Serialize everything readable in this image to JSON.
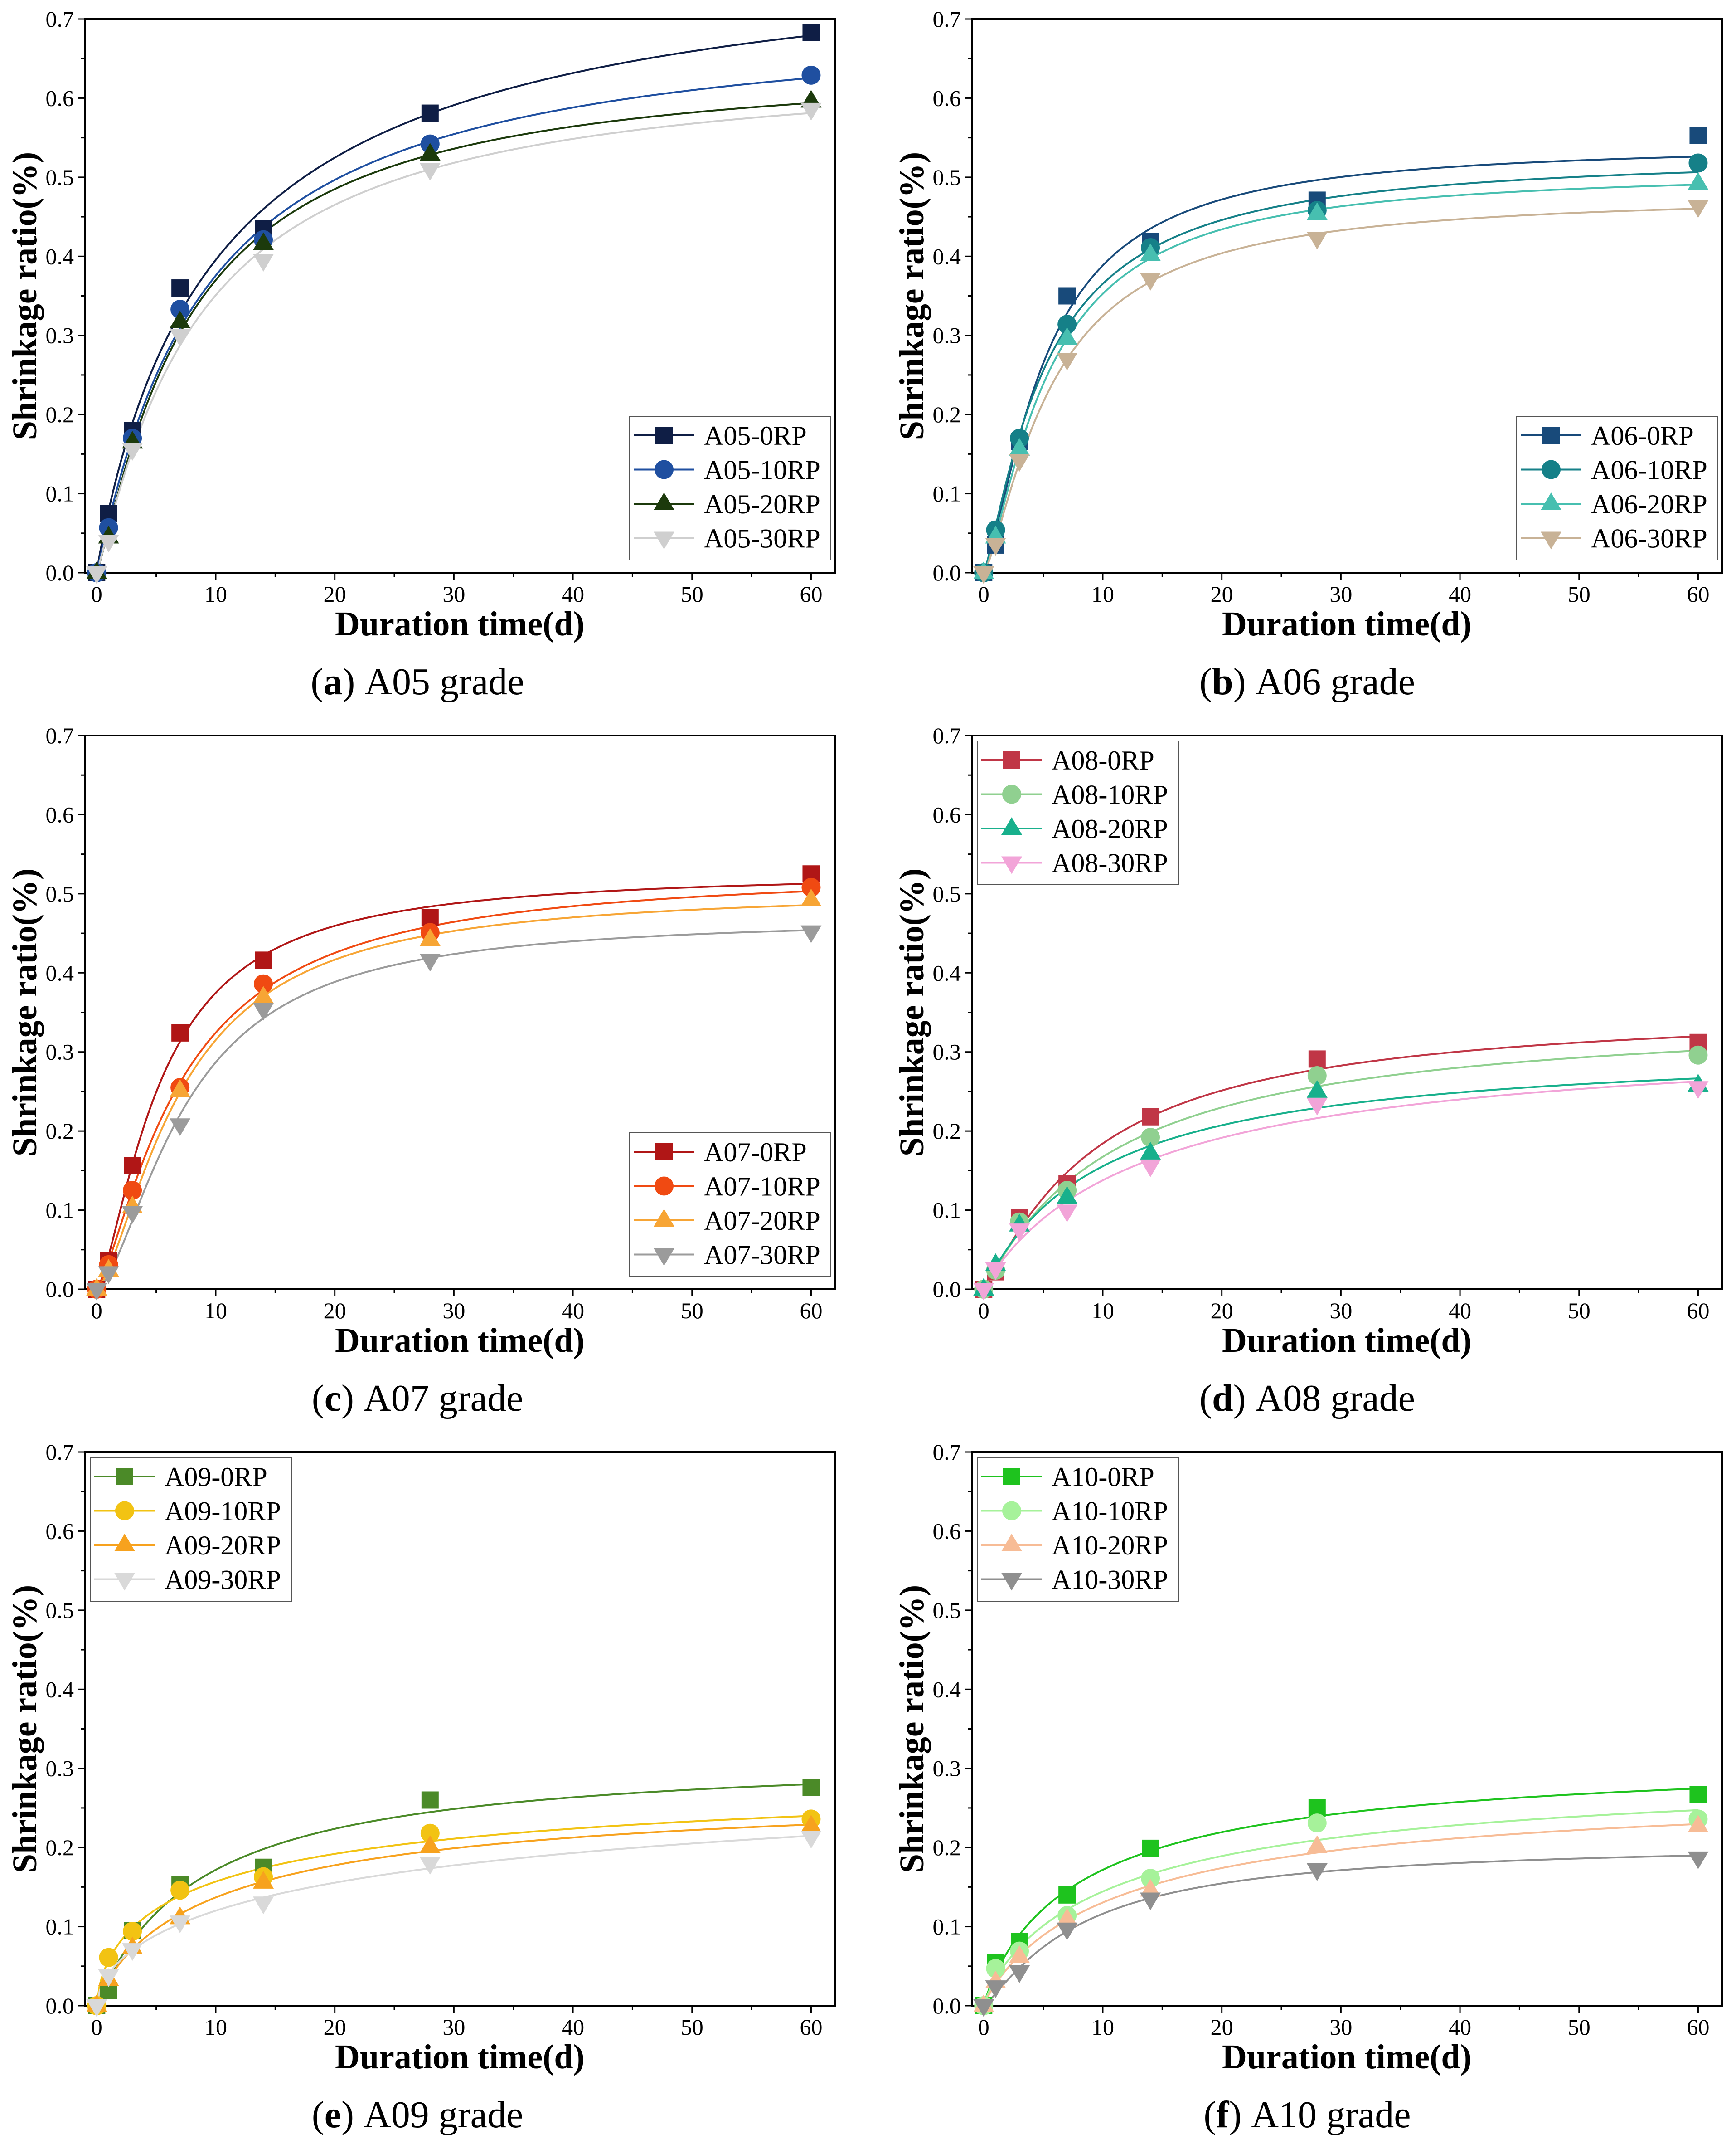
{
  "chart_data": [
    {
      "type": "line",
      "caption": {
        "open": "(",
        "label": "a",
        "close": ")",
        "text": "A05 grade"
      },
      "xlabel": "Duration time(d)",
      "ylabel": "Shrinkage ratio(%)",
      "xlim": [
        -1,
        62
      ],
      "ylim": [
        0,
        0.7
      ],
      "xticks": [
        0,
        10,
        20,
        30,
        40,
        50,
        60
      ],
      "yticks": [
        "0.0",
        "0.1",
        "0.2",
        "0.3",
        "0.4",
        "0.5",
        "0.6",
        "0.7"
      ],
      "legend": "bottom-right",
      "x": [
        0,
        1,
        3,
        7,
        14,
        28,
        60
      ],
      "series": [
        {
          "name": "A05-0RP",
          "marker": "square",
          "color": "#0f1e45",
          "values": [
            0,
            0.075,
            0.18,
            0.36,
            0.435,
            0.581,
            0.683
          ]
        },
        {
          "name": "A05-10RP",
          "marker": "circle",
          "color": "#1f4fa0",
          "values": [
            0,
            0.057,
            0.17,
            0.333,
            0.421,
            0.542,
            0.629
          ]
        },
        {
          "name": "A05-20RP",
          "marker": "triangle-up",
          "color": "#1c3a0c",
          "values": [
            0,
            0.045,
            0.165,
            0.317,
            0.416,
            0.529,
            0.596
          ]
        },
        {
          "name": "A05-30RP",
          "marker": "triangle-down",
          "color": "#cfcfcf",
          "values": [
            0,
            0.04,
            0.156,
            0.3,
            0.395,
            0.51,
            0.586
          ]
        }
      ]
    },
    {
      "type": "line",
      "caption": {
        "open": "(",
        "label": "b",
        "close": ")",
        "text": "A06 grade"
      },
      "xlabel": "Duration time(d)",
      "ylabel": "Shrinkage ratio(%)",
      "xlim": [
        -1,
        62
      ],
      "ylim": [
        0,
        0.7
      ],
      "xticks": [
        0,
        10,
        20,
        30,
        40,
        50,
        60
      ],
      "yticks": [
        "0.0",
        "0.1",
        "0.2",
        "0.3",
        "0.4",
        "0.5",
        "0.6",
        "0.7"
      ],
      "legend": "bottom-right",
      "x": [
        0,
        1,
        3,
        7,
        14,
        28,
        60
      ],
      "series": [
        {
          "name": "A06-0RP",
          "marker": "square",
          "color": "#184a7a",
          "values": [
            0,
            0.035,
            0.166,
            0.35,
            0.419,
            0.471,
            0.553
          ]
        },
        {
          "name": "A06-10RP",
          "marker": "circle",
          "color": "#158088",
          "values": [
            0,
            0.054,
            0.17,
            0.314,
            0.411,
            0.458,
            0.518
          ]
        },
        {
          "name": "A06-20RP",
          "marker": "triangle-up",
          "color": "#47bfb0",
          "values": [
            0,
            0.045,
            0.156,
            0.296,
            0.402,
            0.454,
            0.492
          ]
        },
        {
          "name": "A06-30RP",
          "marker": "triangle-down",
          "color": "#c8b296",
          "values": [
            0,
            0.036,
            0.142,
            0.27,
            0.371,
            0.423,
            0.463
          ]
        }
      ]
    },
    {
      "type": "line",
      "caption": {
        "open": "(",
        "label": "c",
        "close": ")",
        "text": "A07 grade"
      },
      "xlabel": "Duration time(d)",
      "ylabel": "Shrinkage ratio(%)",
      "xlim": [
        -1,
        62
      ],
      "ylim": [
        0,
        0.7
      ],
      "xticks": [
        0,
        10,
        20,
        30,
        40,
        50,
        60
      ],
      "yticks": [
        "0.0",
        "0.1",
        "0.2",
        "0.3",
        "0.4",
        "0.5",
        "0.6",
        "0.7"
      ],
      "legend": "bottom-right",
      "x": [
        0,
        1,
        3,
        7,
        14,
        28,
        60
      ],
      "series": [
        {
          "name": "A07-0RP",
          "marker": "square",
          "color": "#b01616",
          "values": [
            0,
            0.036,
            0.156,
            0.324,
            0.416,
            0.47,
            0.525
          ]
        },
        {
          "name": "A07-10RP",
          "marker": "circle",
          "color": "#f04a12",
          "values": [
            0,
            0.031,
            0.125,
            0.255,
            0.386,
            0.451,
            0.508
          ]
        },
        {
          "name": "A07-20RP",
          "marker": "triangle-up",
          "color": "#f7a535",
          "values": [
            0,
            0.024,
            0.104,
            0.251,
            0.369,
            0.442,
            0.492
          ]
        },
        {
          "name": "A07-30RP",
          "marker": "triangle-down",
          "color": "#9b9b9b",
          "values": [
            0,
            0.021,
            0.097,
            0.208,
            0.354,
            0.416,
            0.452
          ]
        }
      ]
    },
    {
      "type": "line",
      "caption": {
        "open": "(",
        "label": "d",
        "close": ")",
        "text": "A08 grade"
      },
      "xlabel": "Duration time(d)",
      "ylabel": "Shrinkage ratio(%)",
      "xlim": [
        -1,
        62
      ],
      "ylim": [
        0,
        0.7
      ],
      "xticks": [
        0,
        10,
        20,
        30,
        40,
        50,
        60
      ],
      "yticks": [
        "0.0",
        "0.1",
        "0.2",
        "0.3",
        "0.4",
        "0.5",
        "0.6",
        "0.7"
      ],
      "legend": "top-left",
      "x": [
        0,
        1,
        3,
        7,
        14,
        28,
        60
      ],
      "series": [
        {
          "name": "A08-0RP",
          "marker": "square",
          "color": "#c03646",
          "values": [
            0,
            0.022,
            0.09,
            0.133,
            0.218,
            0.291,
            0.312
          ]
        },
        {
          "name": "A08-10RP",
          "marker": "circle",
          "color": "#90d090",
          "values": [
            0,
            0.024,
            0.085,
            0.125,
            0.192,
            0.27,
            0.296
          ]
        },
        {
          "name": "A08-20RP",
          "marker": "triangle-up",
          "color": "#18b08c",
          "values": [
            0,
            0.031,
            0.081,
            0.116,
            0.172,
            0.25,
            0.258
          ]
        },
        {
          "name": "A08-30RP",
          "marker": "triangle-down",
          "color": "#f2a4d8",
          "values": [
            0,
            0.026,
            0.075,
            0.099,
            0.156,
            0.234,
            0.255
          ]
        }
      ]
    },
    {
      "type": "line",
      "caption": {
        "open": "(",
        "label": "e",
        "close": ")",
        "text": "A09 grade"
      },
      "xlabel": "Duration time(d)",
      "ylabel": "Shrinkage ratio(%)",
      "xlim": [
        -1,
        62
      ],
      "ylim": [
        0,
        0.7
      ],
      "xticks": [
        0,
        10,
        20,
        30,
        40,
        50,
        60
      ],
      "yticks": [
        "0.0",
        "0.1",
        "0.2",
        "0.3",
        "0.4",
        "0.5",
        "0.6",
        "0.7"
      ],
      "legend": "top-left",
      "x": [
        0,
        1,
        3,
        7,
        14,
        28,
        60
      ],
      "series": [
        {
          "name": "A09-0RP",
          "marker": "square",
          "color": "#4b8a28",
          "values": [
            0,
            0.019,
            0.095,
            0.153,
            0.175,
            0.26,
            0.276
          ]
        },
        {
          "name": "A09-10RP",
          "marker": "circle",
          "color": "#f2c313",
          "values": [
            0,
            0.061,
            0.094,
            0.146,
            0.163,
            0.218,
            0.236
          ]
        },
        {
          "name": "A09-20RP",
          "marker": "triangle-up",
          "color": "#f7a21e",
          "values": [
            0,
            0.033,
            0.073,
            0.111,
            0.156,
            0.201,
            0.227
          ]
        },
        {
          "name": "A09-30RP",
          "marker": "triangle-down",
          "color": "#d9d9d9",
          "values": [
            0,
            0.038,
            0.071,
            0.106,
            0.13,
            0.18,
            0.213
          ]
        }
      ]
    },
    {
      "type": "line",
      "caption": {
        "open": "(",
        "label": "f",
        "close": ")",
        "text": "A10 grade"
      },
      "xlabel": "Duration time(d)",
      "ylabel": "Shrinkage ratio(%)",
      "xlim": [
        -1,
        62
      ],
      "ylim": [
        0,
        0.7
      ],
      "xticks": [
        0,
        10,
        20,
        30,
        40,
        50,
        60
      ],
      "yticks": [
        "0.0",
        "0.1",
        "0.2",
        "0.3",
        "0.4",
        "0.5",
        "0.6",
        "0.7"
      ],
      "legend": "top-left",
      "x": [
        0,
        1,
        3,
        7,
        14,
        28,
        60
      ],
      "series": [
        {
          "name": "A10-0RP",
          "marker": "square",
          "color": "#1ec31e",
          "values": [
            0,
            0.054,
            0.081,
            0.14,
            0.199,
            0.25,
            0.267
          ]
        },
        {
          "name": "A10-10RP",
          "marker": "circle",
          "color": "#a6f29a",
          "values": [
            0,
            0.047,
            0.069,
            0.114,
            0.161,
            0.231,
            0.236
          ]
        },
        {
          "name": "A10-20RP",
          "marker": "triangle-up",
          "color": "#f7bc96",
          "values": [
            0,
            0.03,
            0.062,
            0.109,
            0.146,
            0.201,
            0.227
          ]
        },
        {
          "name": "A10-30RP",
          "marker": "triangle-down",
          "color": "#8f8f8f",
          "values": [
            0,
            0.024,
            0.043,
            0.097,
            0.135,
            0.172,
            0.187
          ]
        }
      ]
    }
  ]
}
